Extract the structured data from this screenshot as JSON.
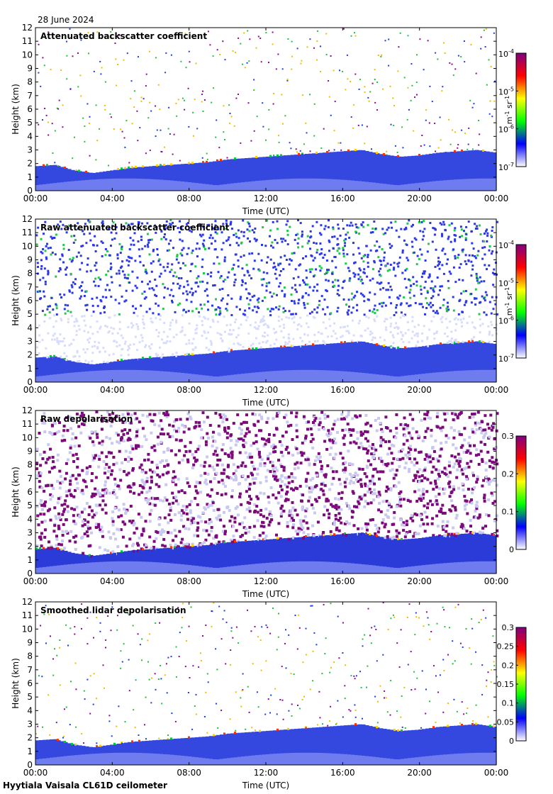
{
  "header": {
    "date": "28 June 2024"
  },
  "footer": {
    "site_instrument": "Hyytiala Vaisala CL61D ceilometer"
  },
  "chart_data": [
    {
      "type": "heatmap",
      "title": "Attenuated backscatter coefficient",
      "xlabel": "Time (UTC)",
      "ylabel": "Height (km)",
      "x_ticks": [
        "00:00",
        "04:00",
        "08:00",
        "12:00",
        "16:00",
        "20:00",
        "00:00"
      ],
      "xlim": [
        0,
        24
      ],
      "y_ticks": [
        0,
        1,
        2,
        3,
        4,
        5,
        6,
        7,
        8,
        9,
        10,
        11,
        12
      ],
      "ylim": [
        0,
        12
      ],
      "colorbar": {
        "scale": "log",
        "min": 1e-07,
        "max": 0.0001,
        "tick_bases": [
          "10",
          "10",
          "10",
          "10"
        ],
        "tick_exps": [
          "-7",
          "-6",
          "-5",
          "-4"
        ],
        "label_parts": [
          "m",
          "-1",
          " sr",
          "-1"
        ]
      },
      "colormap": [
        "#ffffff",
        "#0000ff",
        "#00ff00",
        "#ffff00",
        "#ff0000",
        "#800080"
      ],
      "boundary_layer_top_km": [
        1.8,
        1.9,
        1.5,
        1.3,
        1.5,
        1.7,
        1.8,
        1.9,
        2.0,
        2.1,
        2.3,
        2.4,
        2.5,
        2.6,
        2.7,
        2.8,
        2.9,
        3.0,
        2.7,
        2.5,
        2.6,
        2.8,
        2.9,
        3.0,
        2.8
      ],
      "noise_profile": "sparse"
    },
    {
      "type": "heatmap",
      "title": "Raw attenuated backscatter coefficient",
      "xlabel": "Time (UTC)",
      "ylabel": "Height (km)",
      "x_ticks": [
        "00:00",
        "04:00",
        "08:00",
        "12:00",
        "16:00",
        "20:00",
        "00:00"
      ],
      "xlim": [
        0,
        24
      ],
      "y_ticks": [
        0,
        1,
        2,
        3,
        4,
        5,
        6,
        7,
        8,
        9,
        10,
        11,
        12
      ],
      "ylim": [
        0,
        12
      ],
      "colorbar": {
        "scale": "log",
        "min": 1e-07,
        "max": 0.0001,
        "tick_bases": [
          "10",
          "10",
          "10",
          "10"
        ],
        "tick_exps": [
          "-7",
          "-6",
          "-5",
          "-4"
        ],
        "label_parts": [
          "m",
          "-1",
          " sr",
          "-1"
        ]
      },
      "colormap": [
        "#ffffff",
        "#0000ff",
        "#00ff00",
        "#ffff00",
        "#ff0000",
        "#800080"
      ],
      "boundary_layer_top_km": [
        1.8,
        1.9,
        1.5,
        1.3,
        1.5,
        1.7,
        1.8,
        1.9,
        2.0,
        2.1,
        2.3,
        2.4,
        2.5,
        2.6,
        2.7,
        2.8,
        2.9,
        3.0,
        2.7,
        2.5,
        2.6,
        2.8,
        2.9,
        3.0,
        2.8
      ],
      "noise_profile": "dense"
    },
    {
      "type": "heatmap",
      "title": "Raw depolarisation",
      "xlabel": "Time (UTC)",
      "ylabel": "Height (km)",
      "x_ticks": [
        "00:00",
        "04:00",
        "08:00",
        "12:00",
        "16:00",
        "20:00",
        "00:00"
      ],
      "xlim": [
        0,
        24
      ],
      "y_ticks": [
        0,
        1,
        2,
        3,
        4,
        5,
        6,
        7,
        8,
        9,
        10,
        11,
        12
      ],
      "ylim": [
        0,
        12
      ],
      "colorbar": {
        "scale": "linear",
        "min": 0,
        "max": 0.3,
        "ticks": [
          "0",
          "0.1",
          "0.2",
          "0.3"
        ]
      },
      "colormap": [
        "#ffffff",
        "#0000ff",
        "#00ff00",
        "#ffff00",
        "#ff0000",
        "#800080"
      ],
      "boundary_layer_top_km": [
        1.8,
        1.9,
        1.5,
        1.3,
        1.5,
        1.7,
        1.8,
        1.9,
        2.0,
        2.1,
        2.3,
        2.4,
        2.5,
        2.6,
        2.7,
        2.8,
        2.9,
        3.0,
        2.7,
        2.5,
        2.6,
        2.8,
        2.9,
        3.0,
        2.8
      ],
      "noise_profile": "saturated"
    },
    {
      "type": "heatmap",
      "title": "Smoothed lidar depolarisation",
      "xlabel": "Time (UTC)",
      "ylabel": "Height (km)",
      "x_ticks": [
        "00:00",
        "04:00",
        "08:00",
        "12:00",
        "16:00",
        "20:00",
        "00:00"
      ],
      "xlim": [
        0,
        24
      ],
      "y_ticks": [
        0,
        1,
        2,
        3,
        4,
        5,
        6,
        7,
        8,
        9,
        10,
        11,
        12
      ],
      "ylim": [
        0,
        12
      ],
      "colorbar": {
        "scale": "linear",
        "min": 0,
        "max": 0.3,
        "ticks": [
          "0",
          "0.05",
          "0.1",
          "0.15",
          "0.2",
          "0.25",
          "0.3"
        ]
      },
      "colormap": [
        "#ffffff",
        "#0000ff",
        "#00ff00",
        "#ffff00",
        "#ff0000",
        "#800080"
      ],
      "boundary_layer_top_km": [
        1.8,
        1.9,
        1.5,
        1.3,
        1.5,
        1.7,
        1.8,
        1.9,
        2.0,
        2.1,
        2.3,
        2.4,
        2.5,
        2.6,
        2.7,
        2.8,
        2.9,
        3.0,
        2.7,
        2.5,
        2.6,
        2.8,
        2.9,
        3.0,
        2.8
      ],
      "noise_profile": "sparse"
    }
  ]
}
